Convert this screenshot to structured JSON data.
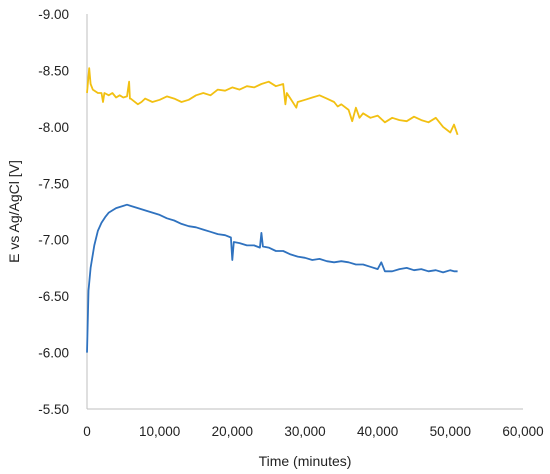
{
  "chart_data": {
    "type": "line",
    "title": "",
    "xlabel": "Time (minutes)",
    "ylabel": "E vs Ag/AgCl [V]",
    "xlim": [
      0,
      60000
    ],
    "ylim": [
      -5.5,
      -9.0
    ],
    "y_axis_reversed": true,
    "grid": false,
    "legend": "none",
    "x_ticks": [
      0,
      10000,
      20000,
      30000,
      40000,
      50000,
      60000
    ],
    "x_tick_labels": [
      "0",
      "10,000",
      "20,000",
      "30,000",
      "40,000",
      "50,000",
      "60,000"
    ],
    "y_ticks": [
      -9.0,
      -8.5,
      -8.0,
      -7.5,
      -7.0,
      -6.5,
      -6.0,
      -5.5
    ],
    "y_tick_labels": [
      "-9.00",
      "-8.50",
      "-8.00",
      "-7.50",
      "-7.00",
      "-6.50",
      "-6.00",
      "-5.50"
    ],
    "series": [
      {
        "color": "#f2c012",
        "x": [
          0,
          300,
          500,
          800,
          1500,
          2000,
          2200,
          2400,
          3000,
          3500,
          4000,
          4500,
          5000,
          5500,
          5800,
          5900,
          6000,
          7000,
          7500,
          8000,
          9000,
          10000,
          11000,
          12000,
          13000,
          14000,
          15000,
          16000,
          17000,
          18000,
          19000,
          20000,
          21000,
          22000,
          23000,
          24000,
          25000,
          26000,
          27000,
          27300,
          27500,
          28000,
          28800,
          29000,
          30000,
          31000,
          32000,
          33000,
          34000,
          34500,
          35000,
          36000,
          36500,
          37000,
          37500,
          38000,
          39000,
          40000,
          41000,
          42000,
          43000,
          44000,
          45000,
          46000,
          47000,
          48000,
          49000,
          50000,
          50500,
          51000
        ],
        "y": [
          -8.3,
          -8.52,
          -8.38,
          -8.33,
          -8.3,
          -8.3,
          -8.22,
          -8.3,
          -8.28,
          -8.3,
          -8.26,
          -8.28,
          -8.26,
          -8.27,
          -8.4,
          -8.25,
          -8.25,
          -8.2,
          -8.22,
          -8.25,
          -8.22,
          -8.24,
          -8.27,
          -8.25,
          -8.22,
          -8.24,
          -8.28,
          -8.3,
          -8.28,
          -8.33,
          -8.32,
          -8.35,
          -8.33,
          -8.36,
          -8.35,
          -8.38,
          -8.4,
          -8.36,
          -8.38,
          -8.2,
          -8.3,
          -8.25,
          -8.17,
          -8.22,
          -8.24,
          -8.26,
          -8.28,
          -8.25,
          -8.22,
          -8.18,
          -8.2,
          -8.15,
          -8.05,
          -8.17,
          -8.08,
          -8.12,
          -8.08,
          -8.1,
          -8.04,
          -8.08,
          -8.06,
          -8.05,
          -8.09,
          -8.06,
          -8.04,
          -8.08,
          -8.0,
          -7.95,
          -8.02,
          -7.93
        ]
      },
      {
        "color": "#2f72bf",
        "x": [
          0,
          200,
          500,
          1000,
          1500,
          2000,
          2500,
          3000,
          3500,
          4000,
          4500,
          5000,
          5500,
          6000,
          7000,
          8000,
          9000,
          10000,
          11000,
          12000,
          13000,
          14000,
          15000,
          16000,
          17000,
          18000,
          19000,
          19800,
          20000,
          20200,
          21000,
          22000,
          23000,
          23800,
          24000,
          24200,
          25000,
          26000,
          27000,
          28000,
          29000,
          30000,
          31000,
          32000,
          33000,
          34000,
          35000,
          36000,
          37000,
          38000,
          39000,
          40000,
          40500,
          41000,
          42000,
          43000,
          44000,
          45000,
          46000,
          47000,
          48000,
          49000,
          50000,
          50500,
          51000
        ],
        "y": [
          -6.0,
          -6.55,
          -6.75,
          -6.95,
          -7.08,
          -7.15,
          -7.2,
          -7.24,
          -7.26,
          -7.28,
          -7.29,
          -7.3,
          -7.31,
          -7.3,
          -7.28,
          -7.26,
          -7.24,
          -7.22,
          -7.19,
          -7.17,
          -7.14,
          -7.12,
          -7.11,
          -7.09,
          -7.07,
          -7.05,
          -7.04,
          -7.02,
          -6.82,
          -6.98,
          -6.97,
          -6.95,
          -6.95,
          -6.93,
          -7.06,
          -6.94,
          -6.93,
          -6.9,
          -6.9,
          -6.87,
          -6.85,
          -6.84,
          -6.82,
          -6.83,
          -6.81,
          -6.8,
          -6.81,
          -6.8,
          -6.78,
          -6.78,
          -6.76,
          -6.74,
          -6.8,
          -6.72,
          -6.72,
          -6.74,
          -6.75,
          -6.73,
          -6.74,
          -6.72,
          -6.73,
          -6.71,
          -6.73,
          -6.72,
          -6.72
        ]
      }
    ]
  }
}
